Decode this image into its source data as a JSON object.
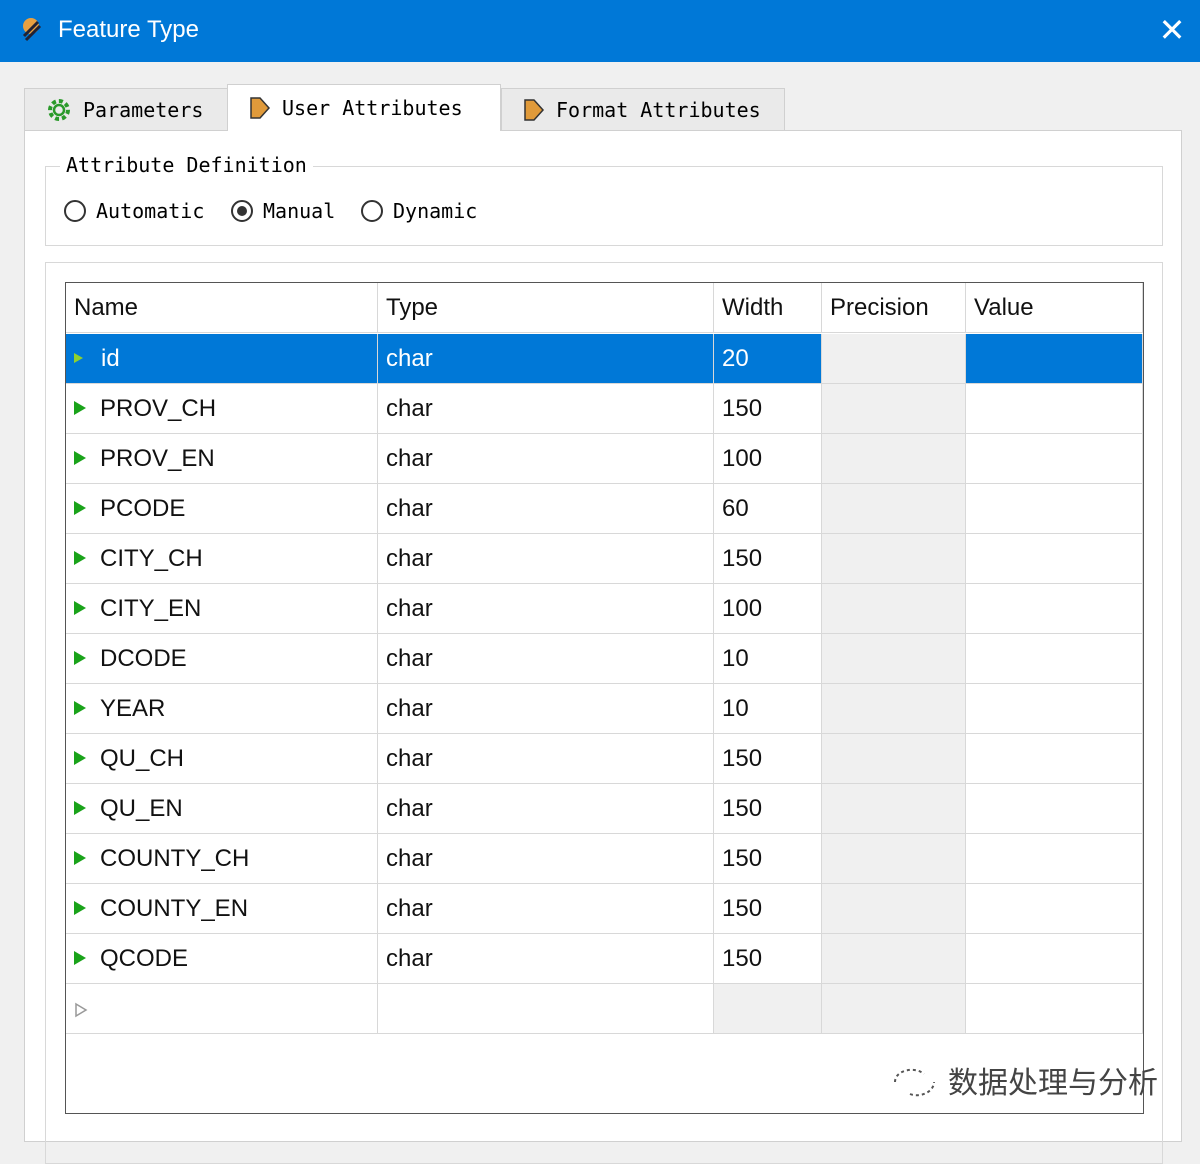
{
  "window": {
    "title": "Feature Type",
    "close": "✕"
  },
  "tabs": [
    {
      "label": "Parameters",
      "icon": "gear-icon"
    },
    {
      "label": "User Attributes",
      "icon": "arrow-icon",
      "active": true
    },
    {
      "label": "Format Attributes",
      "icon": "arrow-icon"
    }
  ],
  "definition": {
    "legend": "Attribute Definition",
    "options": [
      {
        "label": "Automatic",
        "selected": false
      },
      {
        "label": "Manual",
        "selected": true
      },
      {
        "label": "Dynamic",
        "selected": false
      }
    ]
  },
  "table": {
    "columns": [
      "Name",
      "Type",
      "Width",
      "Precision",
      "Value"
    ],
    "rows": [
      [
        "id",
        "char",
        "20",
        "",
        ""
      ],
      [
        "PROV_CH",
        "char",
        "150",
        "",
        ""
      ],
      [
        "PROV_EN",
        "char",
        "100",
        "",
        ""
      ],
      [
        "PCODE",
        "char",
        "60",
        "",
        ""
      ],
      [
        "CITY_CH",
        "char",
        "150",
        "",
        ""
      ],
      [
        "CITY_EN",
        "char",
        "100",
        "",
        ""
      ],
      [
        "DCODE",
        "char",
        "10",
        "",
        ""
      ],
      [
        "YEAR",
        "char",
        "10",
        "",
        ""
      ],
      [
        "QU_CH",
        "char",
        "150",
        "",
        ""
      ],
      [
        "QU_EN",
        "char",
        "150",
        "",
        ""
      ],
      [
        "COUNTY_CH",
        "char",
        "150",
        "",
        ""
      ],
      [
        "COUNTY_EN",
        "char",
        "150",
        "",
        ""
      ],
      [
        "QCODE",
        "char",
        "150",
        "",
        ""
      ]
    ],
    "selected_row": 0
  },
  "watermark": "数据处理与分析",
  "colors": {
    "accent": "#0078d7",
    "row_arrow": "#1aa31a"
  }
}
